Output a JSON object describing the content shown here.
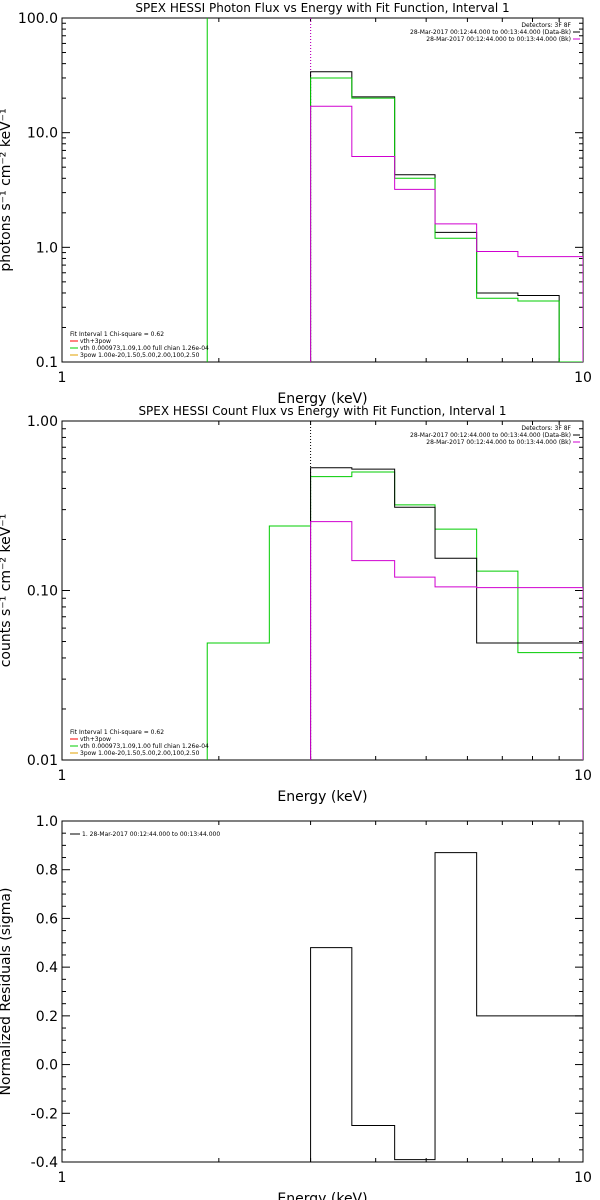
{
  "chart_data": [
    {
      "type": "line",
      "title": "SPEX HESSI Photon Flux vs Energy with Fit Function, Interval 1",
      "xlabel": "Energy (keV)",
      "ylabel": "photons s⁻¹ cm⁻² keV⁻¹",
      "xscale": "log",
      "yscale": "log",
      "xlim": [
        1,
        10
      ],
      "ylim": [
        0.1,
        100
      ],
      "xticks": [
        "1",
        "10"
      ],
      "yticks": [
        "0.1",
        "1.0",
        "10.0",
        "100.0"
      ],
      "ytick_values": [
        0.1,
        1,
        10,
        100
      ],
      "top_right_legend": [
        {
          "text": "Detectors: 3F 8F",
          "color": "#000000"
        },
        {
          "text": "28-Mar-2017 00:12:44.000 to 00:13:44.000 (Data-Bk)",
          "color": "#000000"
        },
        {
          "text": "28-Mar-2017 00:12:44.000 to 00:13:44.000 (Bk)",
          "color": "#d000d0"
        }
      ],
      "bottom_left_legend": [
        {
          "text": "Fit Interval  1    Chi-square = 0.62",
          "color": "#000000"
        },
        {
          "text": "vth+3pow",
          "color": "#ff0000"
        },
        {
          "text": "vth 0.000973,1.09,1.00  full chian 1.26e-04",
          "color": "#00cc00"
        },
        {
          "text": "3pow 1.00e-20,1.50,5.00,2.00,100,2.50",
          "color": "#e0a000"
        }
      ],
      "dotted_lines_x": [
        3.0,
        3.0
      ],
      "series": [
        {
          "color": "#00cc00",
          "kind": "vline",
          "x": 1.9
        },
        {
          "color": "#000000",
          "kind": "step",
          "edges": [
            3.0,
            3.6,
            4.35,
            5.2,
            6.25,
            7.5,
            9.0,
            10.0
          ],
          "values": [
            34,
            20.5,
            4.3,
            1.35,
            0.4,
            0.38,
            0.1
          ]
        },
        {
          "color": "#00cc00",
          "kind": "step",
          "edges": [
            3.0,
            3.6,
            4.35,
            5.2,
            6.25,
            7.5,
            9.0,
            10.0
          ],
          "values": [
            30,
            20,
            4.0,
            1.2,
            0.36,
            0.34,
            0.1
          ]
        },
        {
          "color": "#d000d0",
          "kind": "step",
          "edges": [
            3.0,
            3.6,
            4.35,
            5.2,
            6.25,
            7.5,
            9.0,
            10.0
          ],
          "values": [
            17,
            6.2,
            3.2,
            1.6,
            0.92,
            0.83,
            0.83
          ]
        }
      ]
    },
    {
      "type": "line",
      "title": "SPEX HESSI Count Flux vs Energy with Fit Function, Interval 1",
      "xlabel": "Energy (keV)",
      "ylabel": "counts s⁻¹ cm⁻² keV⁻¹",
      "xscale": "log",
      "yscale": "log",
      "xlim": [
        1,
        10
      ],
      "ylim": [
        0.01,
        1
      ],
      "xticks": [
        "1",
        "10"
      ],
      "yticks": [
        "0.01",
        "0.10",
        "1.00"
      ],
      "ytick_values": [
        0.01,
        0.1,
        1
      ],
      "top_right_legend": [
        {
          "text": "Detectors: 3F 8F",
          "color": "#000000"
        },
        {
          "text": "28-Mar-2017 00:12:44.000 to 00:13:44.000 (Data-Bk)",
          "color": "#000000"
        },
        {
          "text": "28-Mar-2017 00:12:44.000 to 00:13:44.000 (Bk)",
          "color": "#d000d0"
        }
      ],
      "bottom_left_legend": [
        {
          "text": "Fit Interval  1    Chi-square = 0.62",
          "color": "#000000"
        },
        {
          "text": "vth+3pow",
          "color": "#ff0000"
        },
        {
          "text": "vth 0.000973,1.09,1.00  full chian 1.26e-04",
          "color": "#00cc00"
        },
        {
          "text": "3pow 1.00e-20,1.50,5.00,2.00,100,2.50",
          "color": "#e0a000"
        }
      ],
      "dotted_lines_x": [
        3.0
      ],
      "series": [
        {
          "color": "#00cc00",
          "kind": "step",
          "edges": [
            1.9,
            2.5,
            3.0,
            3.6,
            4.35,
            5.2,
            6.25,
            7.5,
            9.0,
            10.0
          ],
          "values": [
            0.049,
            0.24,
            0.47,
            0.5,
            0.32,
            0.23,
            0.13,
            0.043,
            0.043
          ]
        },
        {
          "color": "#000000",
          "kind": "step",
          "edges": [
            3.0,
            3.6,
            4.35,
            5.2,
            6.25,
            7.5,
            9.0,
            10.0
          ],
          "values": [
            0.53,
            0.52,
            0.31,
            0.155,
            0.049,
            0.049,
            0.049
          ]
        },
        {
          "color": "#d000d0",
          "kind": "step",
          "edges": [
            3.0,
            3.6,
            4.35,
            5.2,
            6.25,
            7.5,
            9.0,
            10.0
          ],
          "values": [
            0.255,
            0.15,
            0.12,
            0.105,
            0.104,
            0.104,
            0.104
          ]
        }
      ]
    },
    {
      "type": "line",
      "title": "",
      "xlabel": "Energy (keV)",
      "ylabel": "Normalized Residuals (sigma)",
      "xscale": "log",
      "yscale": "linear",
      "xlim": [
        1,
        10
      ],
      "ylim": [
        -0.4,
        1.0
      ],
      "xticks": [
        "1",
        "10"
      ],
      "yticks": [
        "-0.4",
        "-0.2",
        "0.0",
        "0.2",
        "0.4",
        "0.6",
        "0.8",
        "1.0"
      ],
      "ytick_values": [
        -0.4,
        -0.2,
        0.0,
        0.2,
        0.4,
        0.6,
        0.8,
        1.0
      ],
      "top_left_legend": [
        {
          "text": "1. 28-Mar-2017 00:12:44.000 to 00:13:44.000",
          "color": "#000000"
        }
      ],
      "series": [
        {
          "color": "#000000",
          "kind": "step",
          "edges": [
            3.0,
            3.6,
            4.35,
            5.2,
            6.25,
            7.5,
            9.0,
            10.0
          ],
          "values": [
            0.48,
            -0.25,
            -0.39,
            0.87,
            0.2,
            0.2,
            0.2
          ]
        }
      ]
    }
  ]
}
